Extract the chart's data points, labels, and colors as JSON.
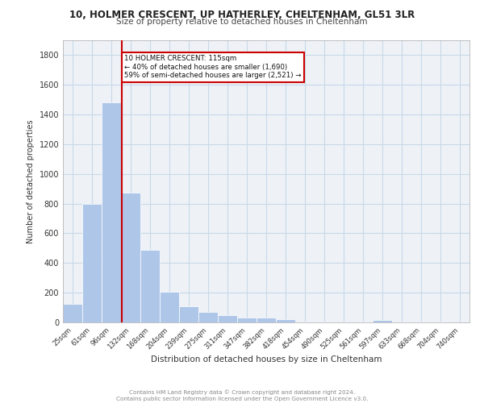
{
  "title": "10, HOLMER CRESCENT, UP HATHERLEY, CHELTENHAM, GL51 3LR",
  "subtitle": "Size of property relative to detached houses in Cheltenham",
  "xlabel": "Distribution of detached houses by size in Cheltenham",
  "ylabel": "Number of detached properties",
  "bins": [
    "25sqm",
    "61sqm",
    "96sqm",
    "132sqm",
    "168sqm",
    "204sqm",
    "239sqm",
    "275sqm",
    "311sqm",
    "347sqm",
    "382sqm",
    "418sqm",
    "454sqm",
    "490sqm",
    "525sqm",
    "561sqm",
    "597sqm",
    "633sqm",
    "668sqm",
    "704sqm",
    "740sqm"
  ],
  "values": [
    125,
    800,
    1480,
    875,
    490,
    205,
    110,
    70,
    50,
    35,
    30,
    20,
    5,
    5,
    5,
    5,
    15,
    5,
    5,
    5,
    0
  ],
  "bar_color": "#aec6e8",
  "annotation_line1": "10 HOLMER CRESCENT: 115sqm",
  "annotation_line2": "← 40% of detached houses are smaller (1,690)",
  "annotation_line3": "59% of semi-detached houses are larger (2,521) →",
  "box_color": "#cc0000",
  "ylim": [
    0,
    1900
  ],
  "yticks": [
    0,
    200,
    400,
    600,
    800,
    1000,
    1200,
    1400,
    1600,
    1800
  ],
  "grid_color": "#c8d8e8",
  "bg_color": "#eef2f7",
  "footer_line1": "Contains HM Land Registry data © Crown copyright and database right 2024.",
  "footer_line2": "Contains public sector information licensed under the Open Government Licence v3.0."
}
